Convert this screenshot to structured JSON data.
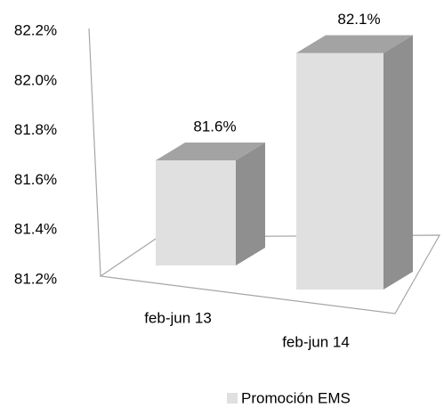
{
  "chart_data": {
    "type": "bar3d",
    "categories": [
      "feb-jun 13",
      "feb-jun 14"
    ],
    "series": [
      {
        "name": "Promoción EMS",
        "color": "#e0e0e0",
        "values": [
          81.6,
          82.1
        ],
        "value_labels": [
          "81.6%",
          "82.1%"
        ]
      }
    ],
    "ylim": [
      81.2,
      82.2
    ],
    "yticks": [
      {
        "value": 81.2,
        "label": "81.2%"
      },
      {
        "value": 81.4,
        "label": "81.4%"
      },
      {
        "value": 81.6,
        "label": "81.6%"
      },
      {
        "value": 81.8,
        "label": "81.8%"
      },
      {
        "value": 82.0,
        "label": "82.0%"
      },
      {
        "value": 82.2,
        "label": "82.2%"
      }
    ],
    "grid": false,
    "legend": "bottom"
  }
}
